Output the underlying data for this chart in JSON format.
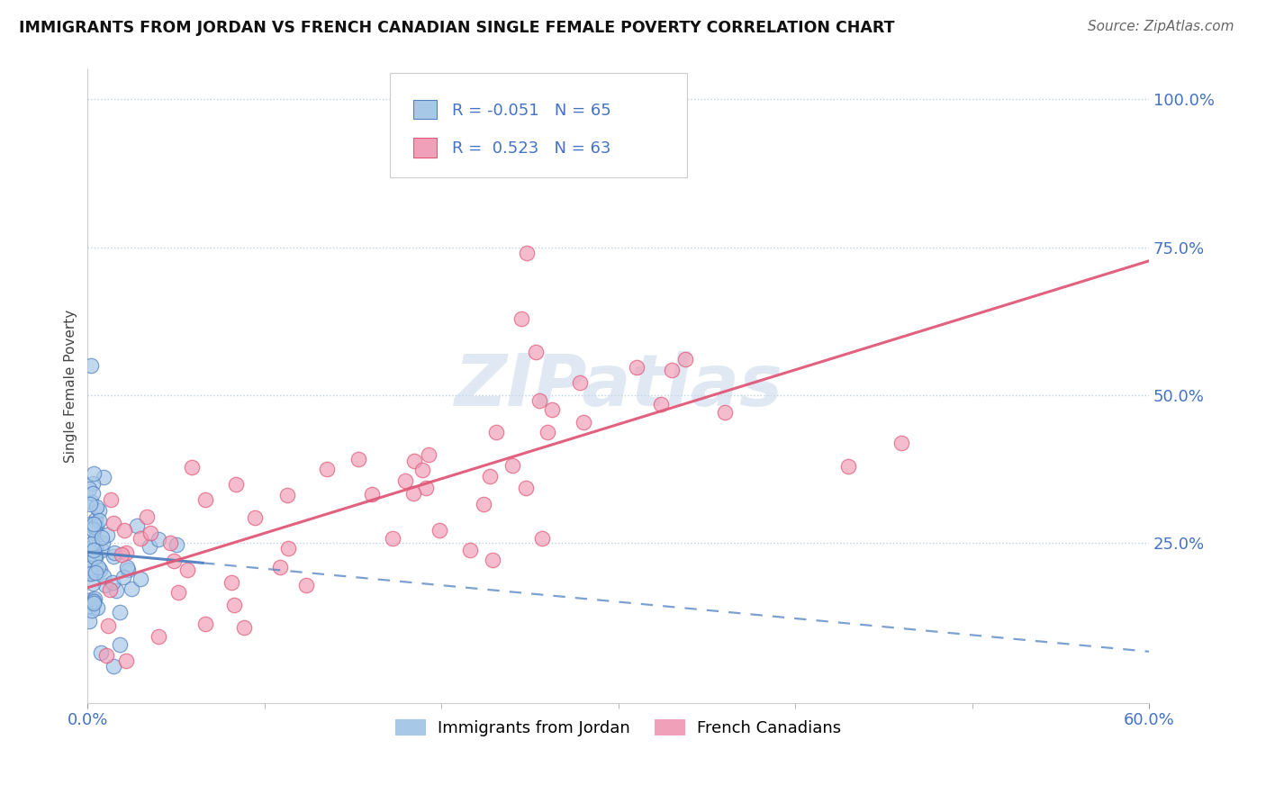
{
  "title": "IMMIGRANTS FROM JORDAN VS FRENCH CANADIAN SINGLE FEMALE POVERTY CORRELATION CHART",
  "source": "Source: ZipAtlas.com",
  "ylabel": "Single Female Poverty",
  "legend_label1": "Immigrants from Jordan",
  "legend_label2": "French Canadians",
  "R1": -0.051,
  "N1": 65,
  "R2": 0.523,
  "N2": 63,
  "color_blue": "#a8c8e8",
  "color_blue_line": "#5080c0",
  "color_pink": "#f0a0b8",
  "color_pink_line": "#e05878",
  "xlim": [
    0.0,
    0.6
  ],
  "ylim": [
    -0.02,
    1.05
  ],
  "ytick_positions": [
    0.0,
    0.25,
    0.5,
    0.75,
    1.0
  ],
  "ytick_labels": [
    "",
    "25.0%",
    "50.0%",
    "75.0%",
    "100.0%"
  ],
  "xtick_positions": [
    0.0,
    0.6
  ],
  "xtick_labels": [
    "0.0%",
    "60.0%"
  ],
  "blue_intercept": 0.235,
  "blue_slope": -0.28,
  "pink_intercept": 0.175,
  "pink_slope": 0.92
}
